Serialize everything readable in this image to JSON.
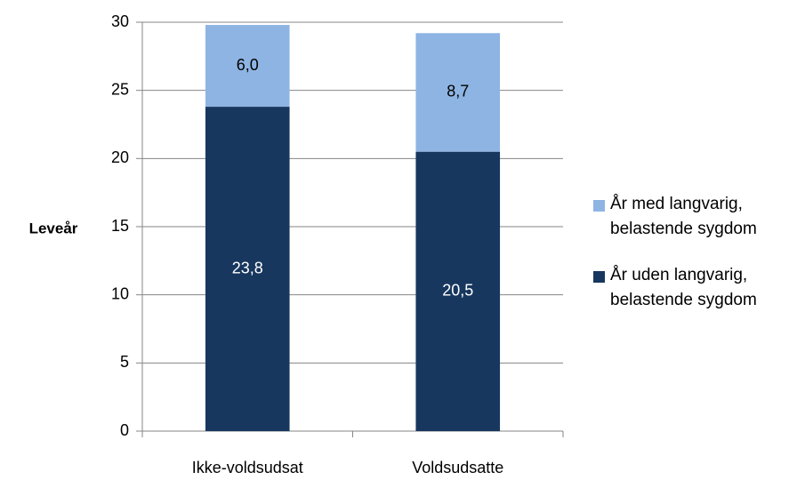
{
  "chart_data": {
    "type": "stacked_bar",
    "y_label": "Leveår",
    "categories": [
      "Ikke-voldsudsat",
      "Voldsudsatte"
    ],
    "series": [
      {
        "name": "År uden langvarig, belastende sygdom",
        "color": "#17375e",
        "values": [
          23.8,
          20.5
        ],
        "value_labels": [
          "23,8",
          "20,5"
        ]
      },
      {
        "name": "År med langvarig, belastende sygdom",
        "color": "#8eb4e3",
        "values": [
          6.0,
          8.7
        ],
        "value_labels": [
          "6,0",
          "8,7"
        ]
      }
    ],
    "ylim": [
      0,
      30
    ],
    "yticks": [
      0,
      5,
      10,
      15,
      20,
      25,
      30
    ],
    "grid": true,
    "legend": "right"
  }
}
